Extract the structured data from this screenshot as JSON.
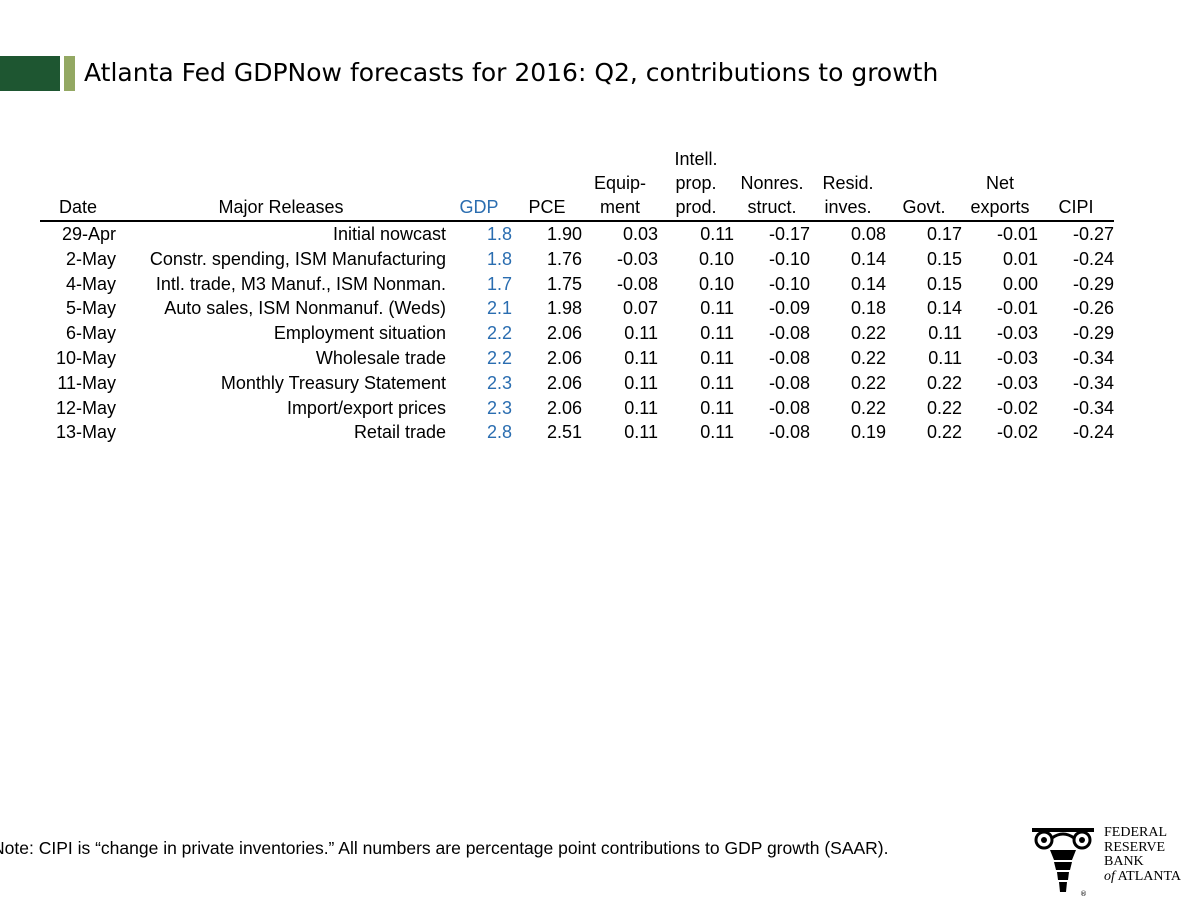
{
  "title": "Atlanta Fed GDPNow forecasts for 2016: Q2, contributions to growth",
  "note": "Note:  CIPI is “change in private inventories.”  All numbers are percentage point contributions to GDP growth (SAAR).",
  "logo": {
    "line1": "FEDERAL",
    "line2": "RESERVE",
    "line3": "BANK",
    "line4_of": "of",
    "line4_rest": " ATLANTA"
  },
  "colors": {
    "accent_dark": "#1e5631",
    "accent_light": "#93a863",
    "gdp": "#2a6db0"
  },
  "chart_data": {
    "type": "table",
    "columns": [
      [
        "Date"
      ],
      [
        "Major Releases"
      ],
      [
        "GDP"
      ],
      [
        "PCE"
      ],
      [
        "Equip-",
        "ment"
      ],
      [
        "Intell.",
        "prop.",
        "prod."
      ],
      [
        "Nonres.",
        "struct."
      ],
      [
        "Resid.",
        "inves."
      ],
      [
        "Govt."
      ],
      [
        "Net",
        "exports"
      ],
      [
        "CIPI"
      ]
    ],
    "rows": [
      [
        "29-Apr",
        "Initial nowcast",
        "1.8",
        "1.90",
        "0.03",
        "0.11",
        "-0.17",
        "0.08",
        "0.17",
        "-0.01",
        "-0.27"
      ],
      [
        "2-May",
        "Constr. spending, ISM Manufacturing",
        "1.8",
        "1.76",
        "-0.03",
        "0.10",
        "-0.10",
        "0.14",
        "0.15",
        "0.01",
        "-0.24"
      ],
      [
        "4-May",
        "Intl. trade, M3 Manuf., ISM Nonman.",
        "1.7",
        "1.75",
        "-0.08",
        "0.10",
        "-0.10",
        "0.14",
        "0.15",
        "0.00",
        "-0.29"
      ],
      [
        "5-May",
        "Auto sales, ISM Nonmanuf. (Weds)",
        "2.1",
        "1.98",
        "0.07",
        "0.11",
        "-0.09",
        "0.18",
        "0.14",
        "-0.01",
        "-0.26"
      ],
      [
        "6-May",
        "Employment situation",
        "2.2",
        "2.06",
        "0.11",
        "0.11",
        "-0.08",
        "0.22",
        "0.11",
        "-0.03",
        "-0.29"
      ],
      [
        "10-May",
        "Wholesale trade",
        "2.2",
        "2.06",
        "0.11",
        "0.11",
        "-0.08",
        "0.22",
        "0.11",
        "-0.03",
        "-0.34"
      ],
      [
        "11-May",
        "Monthly Treasury Statement",
        "2.3",
        "2.06",
        "0.11",
        "0.11",
        "-0.08",
        "0.22",
        "0.22",
        "-0.03",
        "-0.34"
      ],
      [
        "12-May",
        "Import/export prices",
        "2.3",
        "2.06",
        "0.11",
        "0.11",
        "-0.08",
        "0.22",
        "0.22",
        "-0.02",
        "-0.34"
      ],
      [
        "13-May",
        "Retail trade",
        "2.8",
        "2.51",
        "0.11",
        "0.11",
        "-0.08",
        "0.19",
        "0.22",
        "-0.02",
        "-0.24"
      ]
    ]
  }
}
